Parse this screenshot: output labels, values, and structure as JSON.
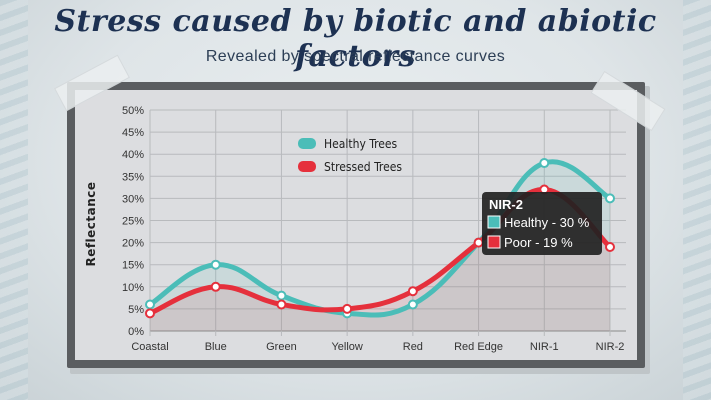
{
  "header": {
    "title": "Stress caused by biotic and  abiotic factors",
    "subtitle": "Revealed by spectral reflectance curves"
  },
  "colors": {
    "healthy": "#4bbdb8",
    "stressed": "#e5303c",
    "title": "#1d3152",
    "tooltip_bg": "#222222"
  },
  "chart_data": {
    "type": "line",
    "categories": [
      "Coastal",
      "Blue",
      "Green",
      "Yellow",
      "Red",
      "Red Edge",
      "NIR-1",
      "NIR-2"
    ],
    "ylabel": "Reflectance",
    "xlabel": "",
    "ylim": [
      0,
      50
    ],
    "yticks": [
      "0%",
      "5%",
      "10%",
      "15%",
      "20%",
      "25%",
      "30%",
      "35%",
      "40%",
      "45%",
      "50%"
    ],
    "grid": true,
    "legend_position": "top-left",
    "series": [
      {
        "name": "Healthy Trees",
        "values": [
          6,
          15,
          8,
          4,
          6,
          20,
          38,
          30
        ]
      },
      {
        "name": "Stressed Trees",
        "values": [
          4,
          10,
          6,
          5,
          9,
          20,
          32,
          19
        ]
      }
    ],
    "tooltip": {
      "title": "NIR-2",
      "lines": [
        "Healthy - 30 %",
        "Poor - 19 %"
      ]
    }
  }
}
